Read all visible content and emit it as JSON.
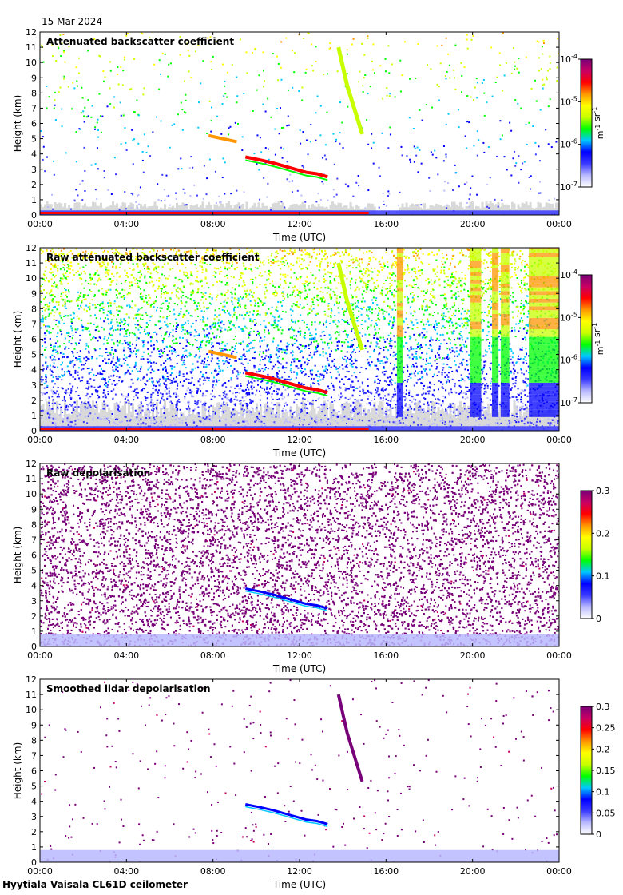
{
  "date": "15 Mar 2024",
  "footer": "Hyytiala Vaisala CL61D ceilometer",
  "colormap": [
    "#ffffff",
    "#b9b9ff",
    "#3a3aff",
    "#0000ff",
    "#00c8ff",
    "#00ff00",
    "#c8ff00",
    "#ffff00",
    "#ff9600",
    "#ff0000",
    "#c80064",
    "#780078"
  ],
  "chart_data": [
    {
      "type": "heatmap",
      "title": "Attenuated backscatter coefficient",
      "xlabel": "Time (UTC)",
      "ylabel": "Height (km)",
      "x_ticks": [
        "00:00",
        "04:00",
        "08:00",
        "12:00",
        "16:00",
        "20:00",
        "00:00"
      ],
      "xlim_hours": [
        0,
        24
      ],
      "y_ticks": [
        "0",
        "1",
        "2",
        "3",
        "4",
        "5",
        "6",
        "7",
        "8",
        "9",
        "10",
        "11",
        "12"
      ],
      "ylim_km": [
        0,
        12
      ],
      "colorbar": {
        "scale": "log",
        "ticks": [
          {
            "base": "10",
            "exp": "-4"
          },
          {
            "base": "10",
            "exp": "-5"
          },
          {
            "base": "10",
            "exp": "-6"
          },
          {
            "base": "10",
            "exp": "-7"
          }
        ],
        "unit_base": [
          "m",
          "sr"
        ],
        "unit_exp": [
          "-1",
          "-1"
        ]
      },
      "features": {
        "noise_fraction": 0.08,
        "gray_layer_max_km": 0.9,
        "strong_clouds": true,
        "surface_layer_km": 0.3,
        "precip_bands": false
      }
    },
    {
      "type": "heatmap",
      "title": "Raw attenuated backscatter coefficient",
      "xlabel": "Time (UTC)",
      "ylabel": "Height (km)",
      "x_ticks": [
        "00:00",
        "04:00",
        "08:00",
        "12:00",
        "16:00",
        "20:00",
        "00:00"
      ],
      "xlim_hours": [
        0,
        24
      ],
      "y_ticks": [
        "0",
        "1",
        "2",
        "3",
        "4",
        "5",
        "6",
        "7",
        "8",
        "9",
        "10",
        "11",
        "12"
      ],
      "ylim_km": [
        0,
        12
      ],
      "colorbar": {
        "scale": "log",
        "ticks": [
          {
            "base": "10",
            "exp": "-4"
          },
          {
            "base": "10",
            "exp": "-5"
          },
          {
            "base": "10",
            "exp": "-6"
          },
          {
            "base": "10",
            "exp": "-7"
          }
        ],
        "unit_base": [
          "m",
          "sr"
        ],
        "unit_exp": [
          "-1",
          "-1"
        ]
      },
      "features": {
        "noise_fraction": 0.75,
        "gray_layer_max_km": 2.0,
        "strong_clouds": true,
        "surface_layer_km": 0.3,
        "precip_bands": true
      }
    },
    {
      "type": "heatmap",
      "title": "Raw depolarisation",
      "xlabel": "Time (UTC)",
      "ylabel": "Height (km)",
      "x_ticks": [
        "00:00",
        "04:00",
        "08:00",
        "12:00",
        "16:00",
        "20:00",
        "00:00"
      ],
      "xlim_hours": [
        0,
        24
      ],
      "y_ticks": [
        "0",
        "1",
        "2",
        "3",
        "4",
        "5",
        "6",
        "7",
        "8",
        "9",
        "10",
        "11",
        "12"
      ],
      "ylim_km": [
        0,
        12
      ],
      "colorbar": {
        "scale": "linear",
        "ticks": [
          "0.3",
          "0.2",
          "0.1",
          "0"
        ],
        "tick_values": [
          0.3,
          0.2,
          0.1,
          0
        ],
        "range": [
          0,
          0.3
        ]
      },
      "features": {
        "noise_fraction": 0.55,
        "purple_noise": true,
        "gray_layer_max_km": 0,
        "strong_clouds": false,
        "blue_clouds": true,
        "surface_layer_km": 0.8
      }
    },
    {
      "type": "heatmap",
      "title": "Smoothed lidar depolarisation",
      "xlabel": "Time (UTC)",
      "ylabel": "Height (km)",
      "x_ticks": [
        "00:00",
        "04:00",
        "08:00",
        "12:00",
        "16:00",
        "20:00",
        "00:00"
      ],
      "xlim_hours": [
        0,
        24
      ],
      "y_ticks": [
        "0",
        "1",
        "2",
        "3",
        "4",
        "5",
        "6",
        "7",
        "8",
        "9",
        "10",
        "11",
        "12"
      ],
      "ylim_km": [
        0,
        12
      ],
      "colorbar": {
        "scale": "linear",
        "ticks": [
          "0.3",
          "0.25",
          "0.2",
          "0.15",
          "0.1",
          "0.05",
          "0"
        ],
        "tick_values": [
          0.3,
          0.25,
          0.2,
          0.15,
          0.1,
          0.05,
          0
        ],
        "range": [
          0,
          0.3
        ]
      },
      "features": {
        "noise_fraction": 0.04,
        "purple_noise": true,
        "gray_layer_max_km": 0,
        "strong_clouds": true,
        "blue_clouds": true,
        "surface_layer_km": 0.8
      }
    }
  ]
}
